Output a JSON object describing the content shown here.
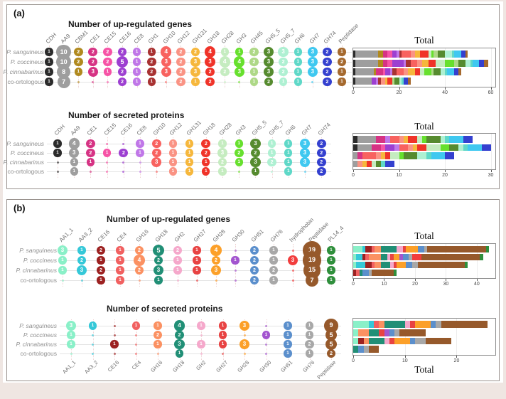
{
  "panels": {
    "a": {
      "label": "(a)"
    },
    "b": {
      "label": "(b)"
    }
  },
  "chart_data": [
    {
      "id": "a_up",
      "panel": "a",
      "type": "bar",
      "stacked": true,
      "orientation": "horizontal",
      "matrix_title": "Number of up-regulated genes",
      "bar_title": "Total",
      "legend_position": "none",
      "grid": true,
      "categories": [
        "P. sanguineus",
        "P. coccineus",
        "P. cinnabarinus",
        "co-ortologous"
      ],
      "series": [
        {
          "name": "CDH",
          "color": "#2b2b2b",
          "values": [
            1,
            1,
            1,
            1
          ]
        },
        {
          "name": "AA9",
          "color": "#9e9e9e",
          "values": [
            10,
            10,
            8,
            7
          ]
        },
        {
          "name": "CBM1",
          "color": "#b0891e",
          "values": [
            2,
            2,
            1,
            0
          ]
        },
        {
          "name": "CE1",
          "color": "#d63384",
          "values": [
            2,
            2,
            3,
            0
          ]
        },
        {
          "name": "CE15",
          "color": "#f653a6",
          "values": [
            2,
            2,
            1,
            0
          ]
        },
        {
          "name": "CE16",
          "color": "#9d3fd1",
          "values": [
            2,
            5,
            2,
            2
          ]
        },
        {
          "name": "CE8",
          "color": "#c077e8",
          "values": [
            1,
            1,
            1,
            1
          ]
        },
        {
          "name": "GH1",
          "color": "#a83232",
          "values": [
            1,
            2,
            2,
            1
          ]
        },
        {
          "name": "GH10",
          "color": "#f8625f",
          "values": [
            4,
            3,
            3,
            0
          ]
        },
        {
          "name": "GH12",
          "color": "#fa9384",
          "values": [
            2,
            2,
            2,
            2
          ]
        },
        {
          "name": "GH131",
          "color": "#f6b73c",
          "values": [
            2,
            3,
            3,
            1
          ]
        },
        {
          "name": "GH18",
          "color": "#f03329",
          "values": [
            4,
            3,
            2,
            2
          ]
        },
        {
          "name": "GH28",
          "color": "#c5ecc0",
          "values": [
            1,
            4,
            2,
            0
          ]
        },
        {
          "name": "GH3",
          "color": "#67e02e",
          "values": [
            1,
            4,
            3,
            0
          ]
        },
        {
          "name": "GH45",
          "color": "#aed886",
          "values": [
            2,
            2,
            1,
            1
          ]
        },
        {
          "name": "GH5_5",
          "color": "#568b2f",
          "values": [
            3,
            3,
            3,
            2
          ]
        },
        {
          "name": "GH5_7",
          "color": "#aef0d2",
          "values": [
            3,
            2,
            2,
            1
          ]
        },
        {
          "name": "GH6",
          "color": "#5fd8c8",
          "values": [
            1,
            1,
            1,
            1
          ]
        },
        {
          "name": "GH7",
          "color": "#3fc8f0",
          "values": [
            3,
            3,
            3,
            0
          ]
        },
        {
          "name": "GH74",
          "color": "#3440cf",
          "values": [
            2,
            2,
            2,
            2
          ]
        },
        {
          "name": "Peptidase",
          "color": "#a5692e",
          "values": [
            1,
            2,
            1,
            1
          ]
        }
      ],
      "totals": [
        50,
        59,
        47,
        25
      ],
      "xticks": [
        0,
        20,
        40,
        60
      ],
      "xmax": 62,
      "column_labels_position": "top"
    },
    {
      "id": "a_sec",
      "panel": "a",
      "type": "bar",
      "stacked": true,
      "orientation": "horizontal",
      "matrix_title": "Number of secreted proteins",
      "bar_title": "Total",
      "legend_position": "none",
      "grid": true,
      "categories": [
        "P. sanguineus",
        "P. coccineus",
        "P. cinnabarinus",
        "co-ortologous"
      ],
      "series": [
        {
          "name": "CDH",
          "color": "#2b2b2b",
          "values": [
            1,
            1,
            0,
            0
          ]
        },
        {
          "name": "AA9",
          "color": "#9e9e9e",
          "values": [
            4,
            3,
            1,
            1
          ]
        },
        {
          "name": "CE1",
          "color": "#d63384",
          "values": [
            2,
            2,
            1,
            0
          ]
        },
        {
          "name": "CE15",
          "color": "#f653a6",
          "values": [
            0,
            1,
            0,
            0
          ]
        },
        {
          "name": "CE16",
          "color": "#9d3fd1",
          "values": [
            0,
            2,
            0,
            0
          ]
        },
        {
          "name": "CE8",
          "color": "#c077e8",
          "values": [
            1,
            1,
            0,
            0
          ]
        },
        {
          "name": "GH10",
          "color": "#f8625f",
          "values": [
            2,
            2,
            3,
            0
          ]
        },
        {
          "name": "GH12",
          "color": "#fa9384",
          "values": [
            1,
            1,
            1,
            1
          ]
        },
        {
          "name": "GH131",
          "color": "#f6b73c",
          "values": [
            1,
            1,
            1,
            1
          ]
        },
        {
          "name": "GH18",
          "color": "#f03329",
          "values": [
            2,
            2,
            1,
            1
          ]
        },
        {
          "name": "GH28",
          "color": "#c5ecc0",
          "values": [
            1,
            3,
            2,
            1
          ]
        },
        {
          "name": "GH3",
          "color": "#67e02e",
          "values": [
            1,
            2,
            1,
            0
          ]
        },
        {
          "name": "GH5_5",
          "color": "#568b2f",
          "values": [
            3,
            2,
            3,
            1
          ]
        },
        {
          "name": "GH5_7",
          "color": "#aef0d2",
          "values": [
            1,
            1,
            2,
            0
          ]
        },
        {
          "name": "GH6",
          "color": "#5fd8c8",
          "values": [
            1,
            1,
            1,
            1
          ]
        },
        {
          "name": "GH7",
          "color": "#3fc8f0",
          "values": [
            3,
            3,
            3,
            0
          ]
        },
        {
          "name": "GH74",
          "color": "#3440cf",
          "values": [
            2,
            2,
            2,
            2
          ]
        }
      ],
      "totals": [
        26,
        30,
        22,
        9
      ],
      "xticks": [
        0,
        10,
        20,
        30
      ],
      "xmax": 31,
      "column_labels_position": "top"
    },
    {
      "id": "b_up",
      "panel": "b",
      "type": "bar",
      "stacked": true,
      "orientation": "horizontal",
      "matrix_title": "Number of up-regulated genes",
      "bar_title": "Total",
      "legend_position": "none",
      "grid": true,
      "categories": [
        "P. sanguineus",
        "P. coccineus",
        "P. cinnabarinus",
        "co-ortologous"
      ],
      "series": [
        {
          "name": "AA1_1",
          "color": "#8af0c8",
          "values": [
            3,
            1,
            1,
            0
          ]
        },
        {
          "name": "AA3_2",
          "color": "#35c8d8",
          "values": [
            1,
            2,
            3,
            0
          ]
        },
        {
          "name": "CE16",
          "color": "#9c2121",
          "values": [
            2,
            1,
            2,
            1
          ]
        },
        {
          "name": "CE4",
          "color": "#f16060",
          "values": [
            1,
            1,
            1,
            1
          ]
        },
        {
          "name": "GH16",
          "color": "#fb9162",
          "values": [
            2,
            4,
            2,
            0
          ]
        },
        {
          "name": "GH18",
          "color": "#218f76",
          "values": [
            5,
            2,
            3,
            1
          ]
        },
        {
          "name": "GH2",
          "color": "#f5a8cb",
          "values": [
            2,
            1,
            1,
            0
          ]
        },
        {
          "name": "GH27",
          "color": "#e84343",
          "values": [
            1,
            1,
            1,
            0
          ]
        },
        {
          "name": "GH28",
          "color": "#fca029",
          "values": [
            4,
            2,
            3,
            0
          ]
        },
        {
          "name": "GH30",
          "color": "#a355cf",
          "values": [
            0,
            1,
            0,
            0
          ]
        },
        {
          "name": "GH51",
          "color": "#5b8fcc",
          "values": [
            2,
            2,
            2,
            2
          ]
        },
        {
          "name": "GH76",
          "color": "#a8a8a8",
          "values": [
            1,
            1,
            2,
            1
          ]
        },
        {
          "name": "hydrophobin",
          "color": "#f23d3d",
          "values": [
            0,
            3,
            0,
            0
          ]
        },
        {
          "name": "Peptidase",
          "color": "#96592b",
          "values": [
            19,
            19,
            15,
            7
          ]
        },
        {
          "name": "PL14_4",
          "color": "#2f8f3c",
          "values": [
            1,
            1,
            1,
            1
          ]
        }
      ],
      "totals": [
        44,
        42,
        37,
        14
      ],
      "xticks": [
        0,
        10,
        20,
        30,
        40
      ],
      "xmax": 46,
      "column_labels_position": "top"
    },
    {
      "id": "b_sec",
      "panel": "b",
      "type": "bar",
      "stacked": true,
      "orientation": "horizontal",
      "matrix_title": "Number of secreted proteins",
      "bar_title": "Total",
      "legend_position": "none",
      "grid": true,
      "categories": [
        "P. sanguineus",
        "P. coccineus",
        "P. cinnabarinus",
        "co-ortologous"
      ],
      "series": [
        {
          "name": "AA1_1",
          "color": "#8af0c8",
          "values": [
            3,
            1,
            1,
            0
          ]
        },
        {
          "name": "AA3_2",
          "color": "#35c8d8",
          "values": [
            1,
            0,
            0,
            0
          ]
        },
        {
          "name": "CE16",
          "color": "#9c2121",
          "values": [
            0,
            0,
            1,
            0
          ]
        },
        {
          "name": "CE4",
          "color": "#f16060",
          "values": [
            1,
            0,
            0,
            0
          ]
        },
        {
          "name": "GH16",
          "color": "#fb9162",
          "values": [
            1,
            2,
            1,
            0
          ]
        },
        {
          "name": "GH18",
          "color": "#218f76",
          "values": [
            4,
            2,
            3,
            1
          ]
        },
        {
          "name": "GH2",
          "color": "#f5a8cb",
          "values": [
            1,
            0,
            1,
            0
          ]
        },
        {
          "name": "GH27",
          "color": "#e84343",
          "values": [
            1,
            1,
            1,
            0
          ]
        },
        {
          "name": "GH28",
          "color": "#fca029",
          "values": [
            3,
            0,
            3,
            0
          ]
        },
        {
          "name": "GH30",
          "color": "#a355cf",
          "values": [
            0,
            1,
            0,
            0
          ]
        },
        {
          "name": "GH51",
          "color": "#5b8fcc",
          "values": [
            1,
            1,
            1,
            1
          ]
        },
        {
          "name": "GH76",
          "color": "#a8a8a8",
          "values": [
            1,
            1,
            2,
            1
          ]
        },
        {
          "name": "Peptidase",
          "color": "#96592b",
          "values": [
            9,
            5,
            5,
            2
          ]
        }
      ],
      "totals": [
        26,
        14,
        19,
        5
      ],
      "xticks": [
        0,
        10,
        20
      ],
      "xmax": 27.5,
      "column_labels_position": "bottom"
    }
  ]
}
